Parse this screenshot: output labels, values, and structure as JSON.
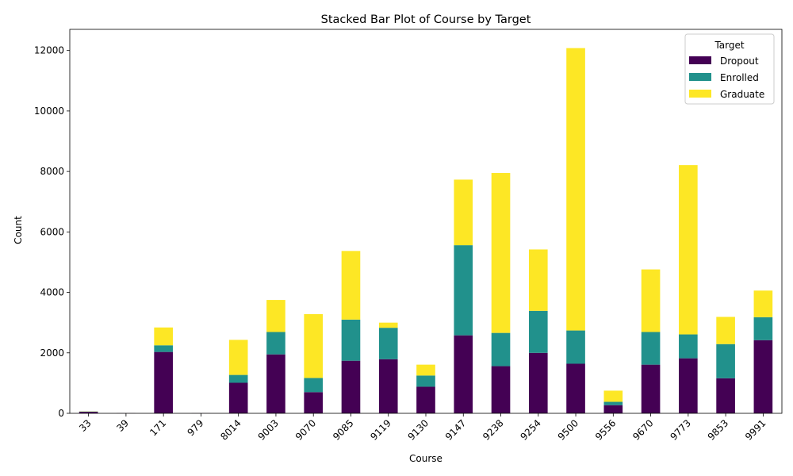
{
  "chart_data": {
    "type": "bar",
    "stacked": true,
    "title": "Stacked Bar Plot of Course by Target",
    "xlabel": "Course",
    "ylabel": "Count",
    "ylim": [
      0,
      12700
    ],
    "yticks": [
      0,
      2000,
      4000,
      6000,
      8000,
      10000,
      12000
    ],
    "categories": [
      "33",
      "39",
      "171",
      "979",
      "8014",
      "9003",
      "9070",
      "9085",
      "9119",
      "9130",
      "9147",
      "9238",
      "9254",
      "9500",
      "9556",
      "9670",
      "9773",
      "9853",
      "9991"
    ],
    "series": [
      {
        "name": "Dropout",
        "color": "#440154",
        "values": [
          50,
          5,
          2030,
          5,
          1010,
          1950,
          700,
          1740,
          1790,
          880,
          2580,
          1560,
          2000,
          1640,
          270,
          1610,
          1820,
          1160,
          2420
        ]
      },
      {
        "name": "Enrolled",
        "color": "#21918c",
        "values": [
          10,
          0,
          220,
          0,
          260,
          740,
          470,
          1360,
          1040,
          370,
          2980,
          1100,
          1390,
          1100,
          110,
          1080,
          790,
          1130,
          760
        ]
      },
      {
        "name": "Graduate",
        "color": "#fde725",
        "values": [
          5,
          0,
          590,
          0,
          1160,
          1060,
          2110,
          2270,
          170,
          360,
          2170,
          5290,
          2030,
          9340,
          370,
          2070,
          5600,
          900,
          880
        ]
      }
    ],
    "legend": {
      "title": "Target",
      "position": "top-right"
    },
    "grid": false
  }
}
